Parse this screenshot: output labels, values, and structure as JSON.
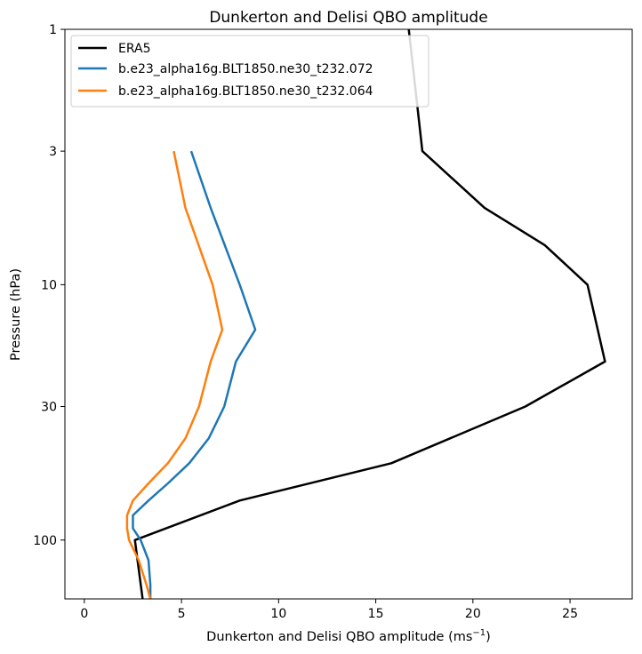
{
  "chart_data": {
    "type": "line",
    "title": "Dunkerton and Delisi QBO amplitude",
    "xlabel": "Dunkerton and Delisi QBO amplitude (ms",
    "xlabel_sup": "−1",
    "xlabel_end": ")",
    "ylabel": "Pressure (hPa)",
    "xlim": [
      -1,
      28.2
    ],
    "ylim": [
      170,
      1
    ],
    "yscale": "log",
    "xticks": [
      0,
      5,
      10,
      15,
      20,
      25
    ],
    "xtick_labels": [
      "0",
      "5",
      "10",
      "15",
      "20",
      "25"
    ],
    "yticks": [
      1,
      3,
      10,
      30,
      100
    ],
    "ytick_labels": [
      "1",
      "3",
      "10",
      "30",
      "100"
    ],
    "legend_position": "top-left",
    "series": [
      {
        "name": "ERA5",
        "color": "#000000",
        "points": [
          [
            16.7,
            1
          ],
          [
            17.4,
            3
          ],
          [
            20.6,
            5
          ],
          [
            23.7,
            7
          ],
          [
            25.9,
            10
          ],
          [
            26.8,
            20
          ],
          [
            22.7,
            30
          ],
          [
            15.8,
            50
          ],
          [
            8.0,
            70
          ],
          [
            2.6,
            100
          ],
          [
            2.8,
            130
          ],
          [
            3.0,
            170
          ]
        ]
      },
      {
        "name": "b.e23_alpha16g.BLT1850.ne30_t232.072",
        "color": "#1f77b4",
        "points": [
          [
            5.5,
            3
          ],
          [
            6.5,
            5
          ],
          [
            8.0,
            10
          ],
          [
            8.8,
            15
          ],
          [
            7.8,
            20
          ],
          [
            7.2,
            30
          ],
          [
            6.4,
            40
          ],
          [
            5.4,
            50
          ],
          [
            4.3,
            60
          ],
          [
            3.3,
            70
          ],
          [
            2.5,
            80
          ],
          [
            2.5,
            90
          ],
          [
            2.9,
            100
          ],
          [
            3.3,
            120
          ],
          [
            3.4,
            150
          ],
          [
            3.4,
            170
          ]
        ]
      },
      {
        "name": "b.e23_alpha16g.BLT1850.ne30_t232.064",
        "color": "#ff7f0e",
        "points": [
          [
            4.6,
            3
          ],
          [
            5.2,
            5
          ],
          [
            6.6,
            10
          ],
          [
            7.1,
            15
          ],
          [
            6.5,
            20
          ],
          [
            5.9,
            30
          ],
          [
            5.2,
            40
          ],
          [
            4.3,
            50
          ],
          [
            3.3,
            60
          ],
          [
            2.5,
            70
          ],
          [
            2.2,
            80
          ],
          [
            2.2,
            90
          ],
          [
            2.3,
            100
          ],
          [
            2.8,
            120
          ],
          [
            3.2,
            150
          ],
          [
            3.4,
            170
          ]
        ]
      }
    ]
  }
}
